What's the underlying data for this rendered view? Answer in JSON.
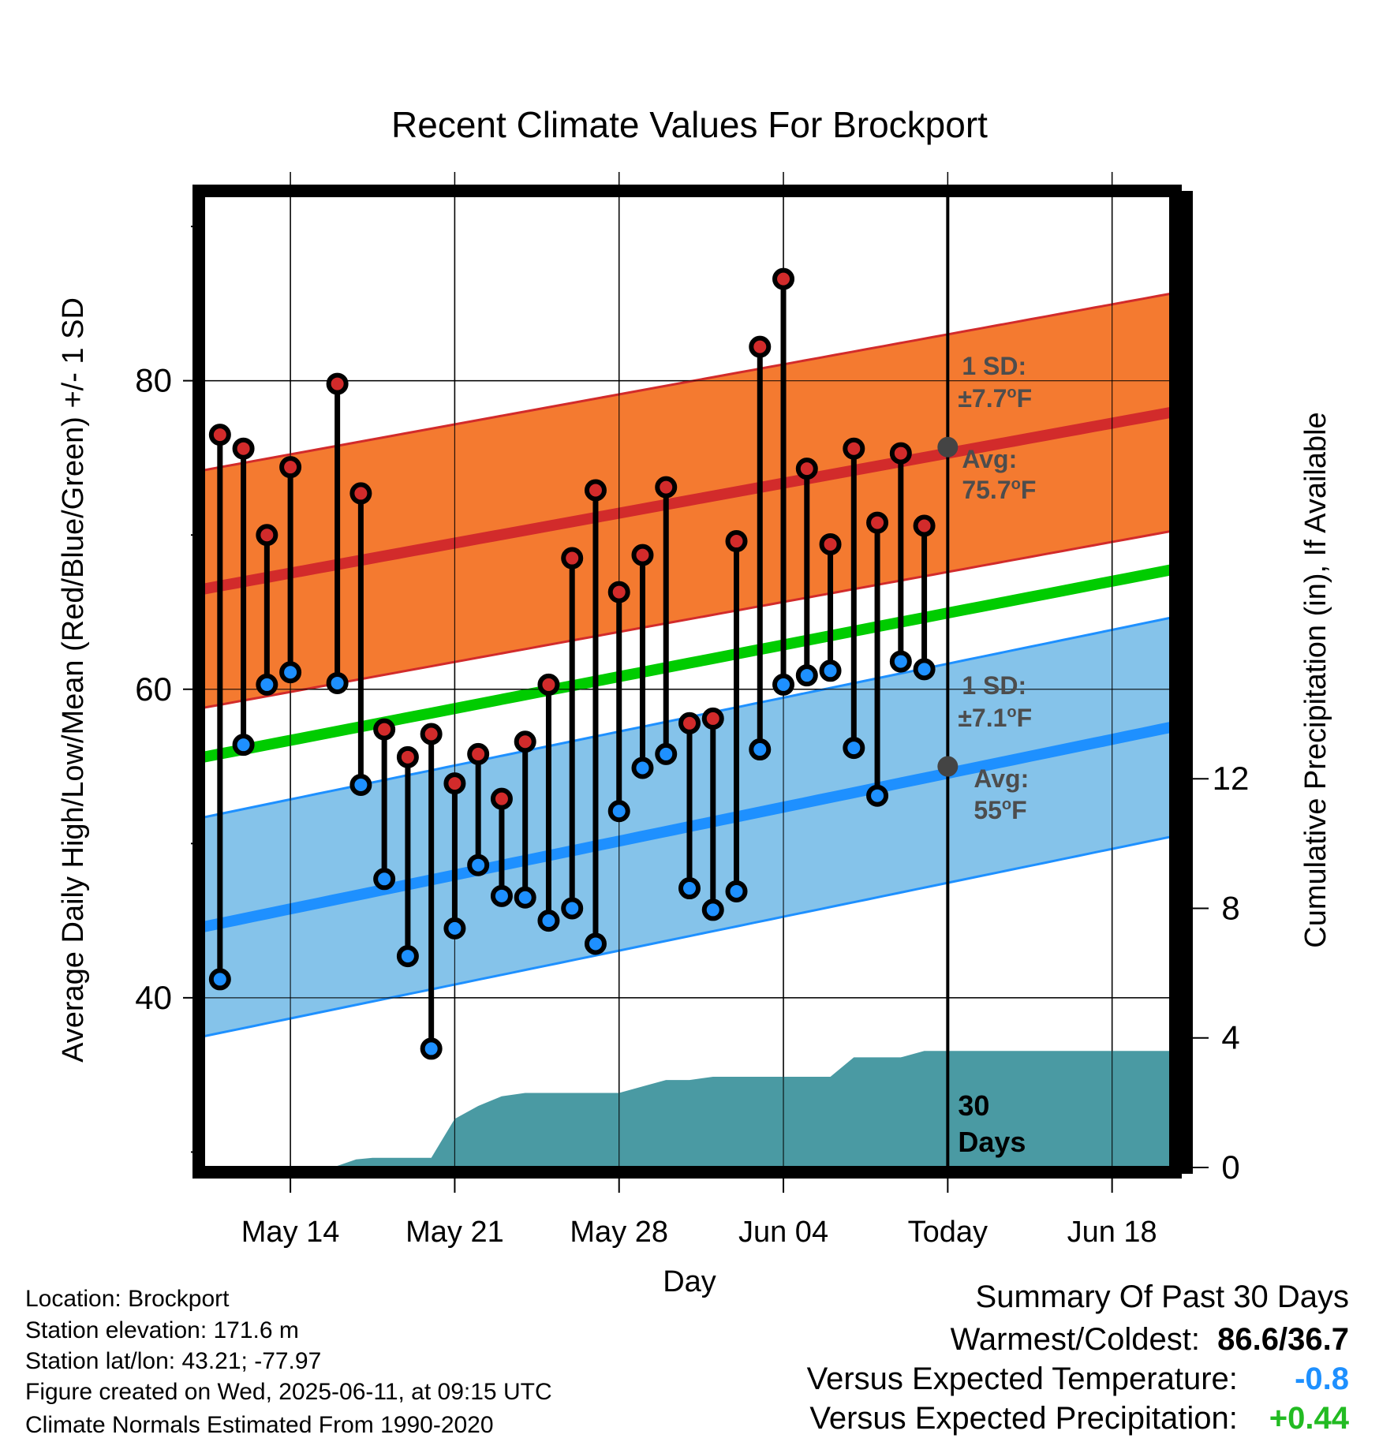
{
  "chart_data": {
    "type": "line",
    "title": "Recent Climate Values For Brockport",
    "xlabel": "Day",
    "ylabel_left": "Average Daily High/Low/Mean (Red/Blue/Green) +/- 1 SD",
    "ylabel_right": "Cumulative Precipitation (in), If Available",
    "ylim_left": [
      29,
      92
    ],
    "ylim_right": [
      0,
      30
    ],
    "y_ticks_left": [
      40,
      60,
      80
    ],
    "y_ticks_right": [
      0,
      4,
      8,
      12
    ],
    "x_ticks": [
      "May 14",
      "May 21",
      "May 28",
      "Jun 04",
      "Today",
      "Jun 18"
    ],
    "x_tick_days": [
      3,
      10,
      17,
      24,
      31,
      38
    ],
    "x_range_days": [
      -0.7,
      40.7
    ],
    "dates": [
      "May 11",
      "May 12",
      "May 13",
      "May 14",
      "May 15",
      "May 16",
      "May 17",
      "May 18",
      "May 19",
      "May 20",
      "May 21",
      "May 22",
      "May 23",
      "May 24",
      "May 25",
      "May 26",
      "May 27",
      "May 28",
      "May 29",
      "May 30",
      "May 31",
      "Jun 01",
      "Jun 02",
      "Jun 03",
      "Jun 04",
      "Jun 05",
      "Jun 06",
      "Jun 07",
      "Jun 08",
      "Jun 09",
      "Jun 10"
    ],
    "series": [
      {
        "name": "Daily High",
        "color": "#d22b2b",
        "values": [
          76.5,
          75.6,
          70.0,
          74.4,
          null,
          79.8,
          72.7,
          57.4,
          55.6,
          57.1,
          53.9,
          55.8,
          52.9,
          56.6,
          60.3,
          68.5,
          72.9,
          66.3,
          68.7,
          73.1,
          57.8,
          58.1,
          69.6,
          82.2,
          86.6,
          74.3,
          69.4,
          75.6,
          70.8,
          75.3,
          70.6
        ]
      },
      {
        "name": "Daily Low",
        "color": "#1e90ff",
        "values": [
          41.2,
          56.4,
          60.3,
          61.1,
          null,
          60.4,
          53.8,
          47.7,
          42.7,
          36.7,
          44.5,
          48.6,
          46.6,
          46.5,
          45.0,
          45.8,
          43.5,
          52.1,
          54.9,
          55.8,
          47.1,
          45.7,
          46.9,
          56.1,
          60.3,
          60.9,
          61.2,
          56.2,
          53.1,
          61.8,
          61.3
        ]
      }
    ],
    "normal_high": {
      "start": 66.5,
      "end": 78.0,
      "sd": 7.7,
      "today_avg": 75.7,
      "label_sd": "1 SD:",
      "label_sd_value": "±7.7",
      "label_avg": "Avg:",
      "label_avg_value": "75.7",
      "unit": "F",
      "unit_sup": "o"
    },
    "normal_low": {
      "start": 44.6,
      "end": 57.6,
      "sd": 7.1,
      "today_avg": 55.0,
      "label_sd": "1 SD:",
      "label_sd_value": "±7.1",
      "label_avg": "Avg:",
      "label_avg_value": "55",
      "unit": "F",
      "unit_sup": "o"
    },
    "normal_mean": {
      "start": 55.6,
      "end": 67.8
    },
    "precip_cumulative": {
      "days": [
        -0.7,
        3,
        4.8,
        5.8,
        6.5,
        9,
        10,
        11,
        12,
        13,
        14,
        15,
        16,
        17,
        18,
        19,
        20,
        21,
        22,
        23,
        24,
        25,
        26,
        27,
        28,
        29,
        30,
        31,
        40.7
      ],
      "values": [
        0,
        0,
        0,
        0.25,
        0.3,
        0.3,
        1.5,
        1.9,
        2.2,
        2.3,
        2.3,
        2.3,
        2.3,
        2.3,
        2.5,
        2.7,
        2.7,
        2.8,
        2.8,
        2.8,
        2.8,
        2.8,
        2.8,
        3.4,
        3.4,
        3.4,
        3.6,
        3.6,
        3.6
      ]
    },
    "today_label_line1": "30",
    "today_label_line2": "Days",
    "grid": true,
    "legend": "none"
  },
  "meta": {
    "location": "Location: Brockport",
    "elevation": "Station elevation: 171.6 m",
    "latlon": "Station lat/lon: 43.21; -77.97",
    "created": "Figure created on Wed, 2025-06-11, at 09:15 UTC",
    "normals": "Climate Normals Estimated From 1990-2020"
  },
  "summary": {
    "title": "Summary Of Past 30 Days",
    "warmest_coldest_label": "Warmest/Coldest:",
    "warmest_coldest_value": "86.6/36.7",
    "temp_label": "Versus Expected Temperature:",
    "temp_value": "-0.8",
    "temp_color": "#1e90ff",
    "precip_label": "Versus Expected Precipitation:",
    "precip_value": "+0.44",
    "precip_color": "#22bb22"
  },
  "colors": {
    "high_band": "#f47a30",
    "high_line": "#d22b2b",
    "low_band": "#85c3ea",
    "low_line": "#1e90ff",
    "mean_line": "#00cc00",
    "precip_fill": "#4a9aa3",
    "annotation": "#4d4d4d"
  }
}
